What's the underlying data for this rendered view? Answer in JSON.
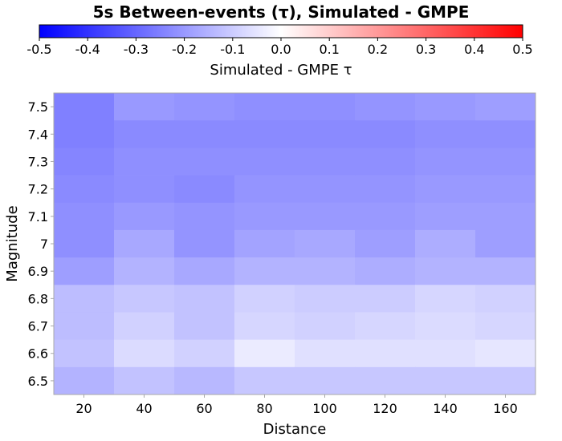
{
  "chart_data": {
    "type": "heatmap",
    "title": "5s Between-events (τ), Simulated - GMPE",
    "colorbar": {
      "label": "Simulated - GMPE τ",
      "range": [
        -0.5,
        0.5
      ],
      "ticks": [
        "-0.5",
        "-0.4",
        "-0.3",
        "-0.2",
        "-0.1",
        "0.0",
        "0.1",
        "0.2",
        "0.3",
        "0.4",
        "0.5"
      ],
      "colors": {
        "low": "#0000ff",
        "mid": "#ffffff",
        "high": "#ff0000"
      }
    },
    "xlabel": "Distance",
    "ylabel": "Magnitude",
    "x": [
      20,
      40,
      60,
      80,
      100,
      120,
      140,
      160
    ],
    "x_ticks": [
      "20",
      "40",
      "60",
      "80",
      "100",
      "120",
      "140",
      "160"
    ],
    "xlim": [
      10,
      170
    ],
    "y": [
      7.5,
      7.4,
      7.3,
      7.2,
      7.1,
      7.0,
      6.9,
      6.8,
      6.7,
      6.6,
      6.5
    ],
    "y_ticks": [
      "7.5",
      "7.4",
      "7.3",
      "7.2",
      "7.1",
      "7",
      "6.9",
      "6.8",
      "6.7",
      "6.6",
      "6.5"
    ],
    "ylim": [
      6.45,
      7.55
    ],
    "values": [
      [
        -0.25,
        -0.2,
        -0.21,
        -0.22,
        -0.22,
        -0.21,
        -0.2,
        -0.19
      ],
      [
        -0.25,
        -0.23,
        -0.23,
        -0.23,
        -0.23,
        -0.23,
        -0.22,
        -0.22
      ],
      [
        -0.24,
        -0.22,
        -0.22,
        -0.22,
        -0.22,
        -0.22,
        -0.21,
        -0.21
      ],
      [
        -0.23,
        -0.22,
        -0.23,
        -0.21,
        -0.21,
        -0.21,
        -0.2,
        -0.2
      ],
      [
        -0.22,
        -0.2,
        -0.21,
        -0.2,
        -0.2,
        -0.2,
        -0.19,
        -0.19
      ],
      [
        -0.22,
        -0.17,
        -0.21,
        -0.18,
        -0.17,
        -0.19,
        -0.16,
        -0.19
      ],
      [
        -0.19,
        -0.15,
        -0.17,
        -0.15,
        -0.15,
        -0.16,
        -0.15,
        -0.15
      ],
      [
        -0.13,
        -0.11,
        -0.12,
        -0.09,
        -0.1,
        -0.1,
        -0.08,
        -0.09
      ],
      [
        -0.13,
        -0.09,
        -0.12,
        -0.08,
        -0.09,
        -0.08,
        -0.07,
        -0.08
      ],
      [
        -0.12,
        -0.07,
        -0.09,
        -0.04,
        -0.06,
        -0.06,
        -0.06,
        -0.05
      ],
      [
        -0.15,
        -0.12,
        -0.14,
        -0.11,
        -0.11,
        -0.11,
        -0.11,
        -0.11
      ]
    ]
  }
}
